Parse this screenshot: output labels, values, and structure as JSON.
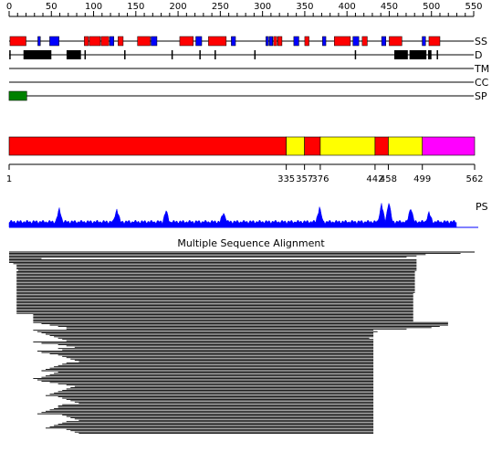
{
  "ruler": {
    "ticks": [
      "0",
      "50",
      "100",
      "150",
      "200",
      "250",
      "300",
      "350",
      "400",
      "450",
      "500",
      "550"
    ]
  },
  "tracks": {
    "labels": [
      "SS",
      "D",
      "TM",
      "CC",
      "SP"
    ]
  },
  "secondary_structure": {
    "helix_color": "#ff0000",
    "strand_color": "#0000ff",
    "helix_ranges": [
      [
        1,
        20
      ],
      [
        89,
        94
      ],
      [
        95,
        108
      ],
      [
        109,
        118
      ],
      [
        129,
        135
      ],
      [
        152,
        167
      ],
      [
        202,
        218
      ],
      [
        236,
        257
      ],
      [
        313,
        317
      ],
      [
        318,
        323
      ],
      [
        350,
        355
      ],
      [
        385,
        404
      ],
      [
        418,
        424
      ],
      [
        450,
        465
      ],
      [
        497,
        510
      ]
    ],
    "strand_ranges": [
      [
        34,
        37
      ],
      [
        48,
        59
      ],
      [
        119,
        124
      ],
      [
        168,
        175
      ],
      [
        221,
        228
      ],
      [
        263,
        268
      ],
      [
        304,
        307
      ],
      [
        308,
        312
      ],
      [
        337,
        343
      ],
      [
        371,
        375
      ],
      [
        407,
        414
      ],
      [
        441,
        446
      ],
      [
        489,
        493
      ]
    ]
  },
  "disorder": {
    "color": "#000000",
    "segments": [
      [
        17,
        50
      ],
      [
        68,
        85
      ],
      [
        456,
        472
      ],
      [
        474,
        494
      ],
      [
        496,
        500
      ]
    ],
    "ticks": [
      1,
      90,
      137,
      193,
      226,
      244,
      291,
      410,
      507
    ]
  },
  "signal_peptide": {
    "color": "#008000",
    "range": [
      1,
      22
    ]
  },
  "domains": {
    "colors": {
      "red": "#ff0000",
      "yellow": "#ffff00",
      "magenta": "#ff00ff"
    },
    "segments": [
      {
        "start": 1,
        "end": 335,
        "color": "red"
      },
      {
        "start": 335,
        "end": 357,
        "color": "yellow"
      },
      {
        "start": 357,
        "end": 376,
        "color": "red"
      },
      {
        "start": 376,
        "end": 442,
        "color": "yellow"
      },
      {
        "start": 442,
        "end": 458,
        "color": "red"
      },
      {
        "start": 458,
        "end": 499,
        "color": "yellow"
      },
      {
        "start": 499,
        "end": 562,
        "color": "magenta"
      }
    ],
    "boundary_labels": [
      "1",
      "335",
      "357",
      "376",
      "442",
      "458",
      "499",
      "562"
    ]
  },
  "ps_track": {
    "label": "PS",
    "color": "#0000ff"
  },
  "msa": {
    "title": "Multiple Sequence Alignment",
    "rows": [
      [
        1,
        562
      ],
      [
        1,
        545
      ],
      [
        1,
        503
      ],
      [
        1,
        492
      ],
      [
        1,
        480
      ],
      [
        1,
        40
      ],
      [
        1,
        492
      ],
      [
        1,
        492
      ],
      [
        1,
        492
      ],
      [
        6,
        492
      ],
      [
        10,
        492
      ],
      [
        10,
        492
      ],
      [
        10,
        492
      ],
      [
        10,
        492
      ],
      [
        12,
        492
      ],
      [
        10,
        490
      ],
      [
        10,
        490
      ],
      [
        10,
        490
      ],
      [
        10,
        490
      ],
      [
        10,
        490
      ],
      [
        10,
        490
      ],
      [
        10,
        490
      ],
      [
        10,
        490
      ],
      [
        10,
        490
      ],
      [
        10,
        490
      ],
      [
        10,
        490
      ],
      [
        10,
        490
      ],
      [
        10,
        490
      ],
      [
        10,
        490
      ],
      [
        10,
        490
      ],
      [
        10,
        490
      ],
      [
        10,
        490
      ],
      [
        10,
        488
      ],
      [
        10,
        488
      ],
      [
        10,
        488
      ],
      [
        10,
        488
      ],
      [
        10,
        488
      ],
      [
        10,
        488
      ],
      [
        10,
        488
      ],
      [
        10,
        488
      ],
      [
        10,
        488
      ],
      [
        10,
        488
      ],
      [
        10,
        488
      ],
      [
        10,
        488
      ],
      [
        10,
        488
      ],
      [
        10,
        488
      ],
      [
        10,
        488
      ],
      [
        10,
        488
      ],
      [
        30,
        488
      ],
      [
        30,
        488
      ],
      [
        30,
        488
      ],
      [
        30,
        488
      ],
      [
        30,
        488
      ],
      [
        30,
        488
      ],
      [
        30,
        530
      ],
      [
        40,
        530
      ],
      [
        50,
        530
      ],
      [
        60,
        520
      ],
      [
        70,
        510
      ],
      [
        70,
        480
      ],
      [
        30,
        440
      ],
      [
        35,
        445
      ],
      [
        40,
        440
      ],
      [
        45,
        440
      ],
      [
        50,
        440
      ],
      [
        55,
        440
      ],
      [
        60,
        435
      ],
      [
        65,
        440
      ],
      [
        70,
        440
      ],
      [
        30,
        440
      ],
      [
        40,
        440
      ],
      [
        60,
        440
      ],
      [
        70,
        440
      ],
      [
        80,
        440
      ],
      [
        60,
        440
      ],
      [
        65,
        440
      ],
      [
        35,
        440
      ],
      [
        40,
        440
      ],
      [
        50,
        440
      ],
      [
        60,
        440
      ],
      [
        65,
        440
      ],
      [
        70,
        440
      ],
      [
        75,
        440
      ],
      [
        80,
        440
      ],
      [
        85,
        440
      ],
      [
        70,
        440
      ],
      [
        65,
        440
      ],
      [
        60,
        440
      ],
      [
        55,
        440
      ],
      [
        50,
        440
      ],
      [
        45,
        440
      ],
      [
        40,
        440
      ],
      [
        60,
        440
      ],
      [
        55,
        440
      ],
      [
        50,
        440
      ],
      [
        45,
        440
      ],
      [
        40,
        440
      ],
      [
        30,
        440
      ],
      [
        35,
        440
      ],
      [
        40,
        440
      ],
      [
        50,
        440
      ],
      [
        60,
        440
      ],
      [
        70,
        440
      ],
      [
        80,
        440
      ],
      [
        75,
        440
      ],
      [
        70,
        440
      ],
      [
        65,
        440
      ],
      [
        60,
        440
      ],
      [
        55,
        440
      ],
      [
        50,
        440
      ],
      [
        45,
        440
      ],
      [
        60,
        440
      ],
      [
        65,
        440
      ],
      [
        70,
        440
      ],
      [
        75,
        440
      ],
      [
        80,
        440
      ],
      [
        85,
        440
      ],
      [
        65,
        440
      ],
      [
        60,
        440
      ],
      [
        60,
        440
      ],
      [
        55,
        440
      ],
      [
        50,
        440
      ],
      [
        45,
        440
      ],
      [
        40,
        440
      ],
      [
        35,
        440
      ],
      [
        65,
        440
      ],
      [
        70,
        440
      ],
      [
        75,
        440
      ],
      [
        80,
        440
      ],
      [
        85,
        440
      ],
      [
        70,
        440
      ],
      [
        65,
        440
      ],
      [
        60,
        440
      ],
      [
        55,
        440
      ],
      [
        50,
        440
      ],
      [
        45,
        440
      ],
      [
        70,
        440
      ],
      [
        75,
        440
      ],
      [
        80,
        440
      ],
      [
        85,
        440
      ]
    ]
  }
}
